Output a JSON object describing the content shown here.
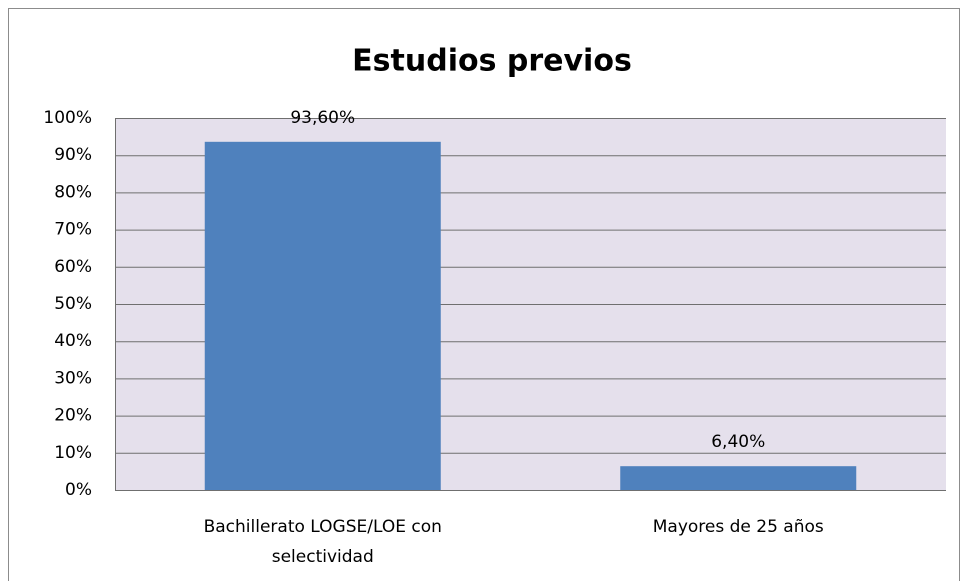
{
  "chart_data": {
    "type": "bar",
    "title": "Estudios previos",
    "categories": [
      "Bachillerato LOGSE/LOE con selectividad",
      "Mayores de 25 años"
    ],
    "values": [
      93.6,
      6.4
    ],
    "value_labels": [
      "93,60%",
      "6,40%"
    ],
    "color": "#4f81bd",
    "ylim": [
      0,
      100
    ],
    "yticks": [
      {
        "value": 0,
        "label": "0%"
      },
      {
        "value": 10,
        "label": "10%"
      },
      {
        "value": 20,
        "label": "20%"
      },
      {
        "value": 30,
        "label": "30%"
      },
      {
        "value": 40,
        "label": "40%"
      },
      {
        "value": 50,
        "label": "50%"
      },
      {
        "value": 60,
        "label": "60%"
      },
      {
        "value": 70,
        "label": "70%"
      },
      {
        "value": 80,
        "label": "80%"
      },
      {
        "value": 90,
        "label": "90%"
      },
      {
        "value": 100,
        "label": "100%"
      }
    ],
    "grid": true
  }
}
